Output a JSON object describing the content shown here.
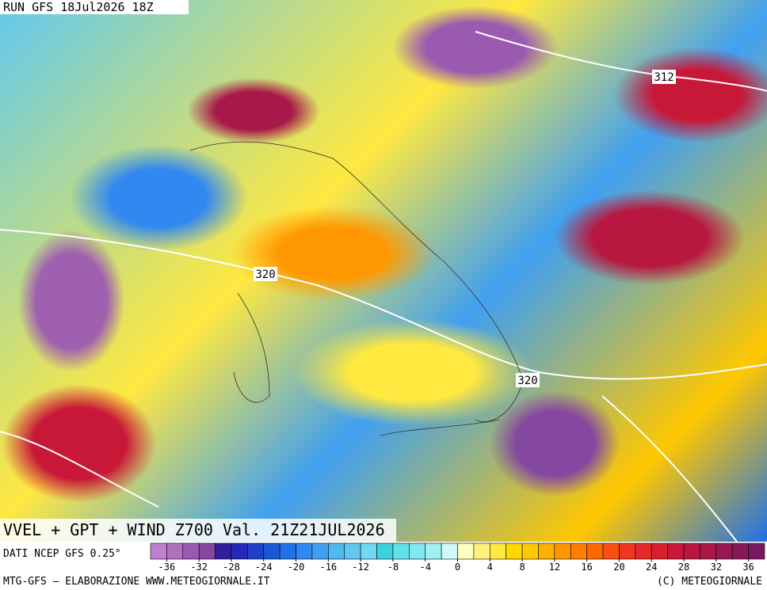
{
  "header": {
    "run": "RUN GFS 18Jul2026 18Z"
  },
  "map": {
    "contour_labels": [
      312,
      320,
      320
    ]
  },
  "footer": {
    "title": "VVEL + GPT + WIND Z700 Val. 21Z21JUL2026",
    "source": "DATI NCEP GFS 0.25°",
    "credit_left": "MTG-GFS – ELABORAZIONE WWW.METEOGIORNALE.IT",
    "credit_right": "(C) METEOGIORNALE"
  },
  "colorbar": {
    "range": [
      -38,
      38
    ],
    "ticks": [
      -36,
      -32,
      -28,
      -24,
      -20,
      -16,
      -12,
      -8,
      -4,
      0,
      4,
      8,
      12,
      16,
      20,
      24,
      28,
      32,
      36
    ],
    "colors": [
      "#c080d0",
      "#b070c0",
      "#9a5ab0",
      "#8448a0",
      "#3020a0",
      "#2828b8",
      "#2040c8",
      "#1858d8",
      "#2070e8",
      "#3088f0",
      "#40a0f0",
      "#50b8f0",
      "#60c8f0",
      "#70d8f0",
      "#40d0e0",
      "#60e0e8",
      "#80e8f0",
      "#a0f0f0",
      "#d0f8f8",
      "#ffffc0",
      "#fff080",
      "#ffe840",
      "#ffd800",
      "#ffc800",
      "#ffb000",
      "#ff9800",
      "#ff8000",
      "#ff6800",
      "#f85010",
      "#f03820",
      "#e82828",
      "#d82030",
      "#c81838",
      "#b81840",
      "#a81848",
      "#981850",
      "#881858",
      "#781860"
    ]
  }
}
